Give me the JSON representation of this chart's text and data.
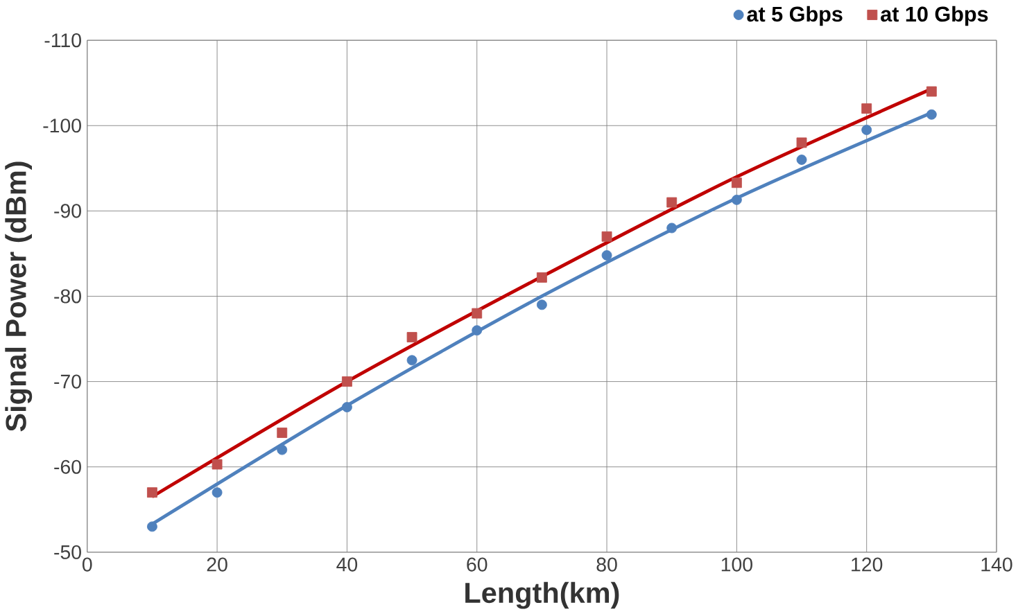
{
  "chart_data": {
    "type": "scatter",
    "xlabel": "Length(km)",
    "ylabel": "Signal Power (dBm)",
    "x": [
      10,
      20,
      30,
      40,
      50,
      60,
      70,
      80,
      90,
      100,
      110,
      120,
      130
    ],
    "series": [
      {
        "name": "at 5 Gbps",
        "color": "#4f81bd",
        "marker": "circle",
        "values": [
          -53,
          -57,
          -62,
          -67,
          -72.5,
          -76,
          -79,
          -84.8,
          -88,
          -91.3,
          -96,
          -99.5,
          -101.3
        ]
      },
      {
        "name": "at 10 Gbps",
        "color": "#c0504d",
        "marker": "square",
        "values": [
          -57,
          -60.3,
          -64,
          -70,
          -75.2,
          -78,
          -82.2,
          -87,
          -91,
          -93.3,
          -98,
          -102,
          -104
        ]
      },
      {
        "type": "line",
        "color": "#4f81bd",
        "x": [
          10,
          40,
          70,
          100,
          130
        ],
        "values": [
          -53.3,
          -67.2,
          -80,
          -91.5,
          -101.5
        ]
      },
      {
        "type": "line",
        "color": "#c00000",
        "x": [
          10,
          40,
          70,
          100,
          130
        ],
        "values": [
          -56.5,
          -70,
          -82.3,
          -94,
          -104.3
        ]
      }
    ],
    "xlim": [
      0,
      140
    ],
    "xticks": [
      0,
      20,
      40,
      60,
      80,
      100,
      120,
      140
    ],
    "ylim": [
      -50,
      -110
    ],
    "yticks": [
      -50,
      -60,
      -70,
      -80,
      -90,
      -100,
      -110
    ],
    "grid": true,
    "legend": "top right"
  }
}
